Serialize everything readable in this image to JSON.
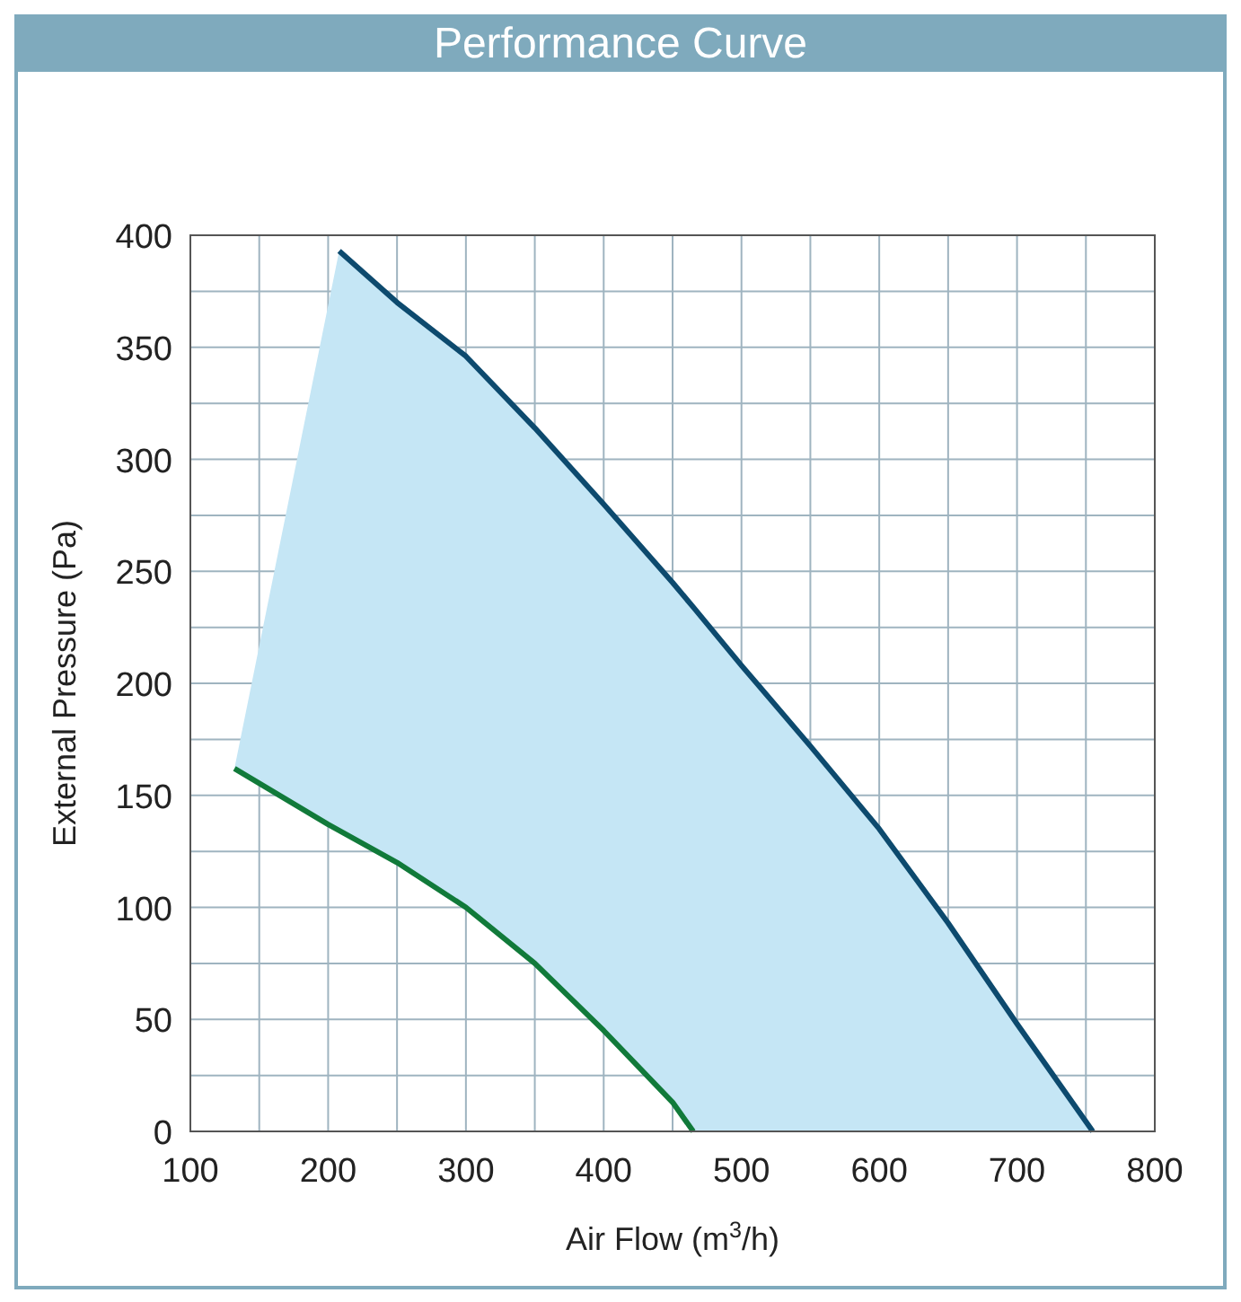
{
  "chart_data": {
    "type": "line",
    "title": "Performance Curve",
    "xlabel": "Air Flow (m$^{3}$/h)",
    "ylabel": "External Pressure (Pa)",
    "xlim": [
      100,
      800
    ],
    "ylim": [
      0,
      400
    ],
    "xticks": [
      100,
      {
        "value": 150,
        "label": null
      },
      200,
      {
        "value": 250,
        "label": null
      },
      300,
      {
        "value": 350,
        "label": null
      },
      400,
      {
        "value": 450,
        "label": null
      },
      500,
      {
        "value": 550,
        "label": null
      },
      600,
      {
        "value": 650,
        "label": null
      },
      700,
      {
        "value": 750,
        "label": null
      },
      800
    ],
    "yticks": [
      0,
      {
        "value": 25,
        "label": null
      },
      50,
      {
        "value": 75,
        "label": null
      },
      100,
      {
        "value": 125,
        "label": null
      },
      150,
      {
        "value": 175,
        "label": null
      },
      200,
      {
        "value": 225,
        "label": null
      },
      250,
      {
        "value": 275,
        "label": null
      },
      300,
      {
        "value": 325,
        "label": null
      },
      350,
      {
        "value": 375,
        "label": null
      },
      400
    ],
    "grid": true,
    "series": [
      {
        "color": "#0d4a6e",
        "x": [
          132,
          208,
          250,
          300,
          350,
          400,
          450,
          465,
          500,
          550,
          600,
          650,
          700,
          755
        ],
        "values": [
          null,
          393,
          370,
          346,
          314,
          280,
          245,
          234,
          208,
          172,
          135,
          93,
          48,
          0
        ],
        "upper": [
          162,
          393,
          370,
          346,
          314,
          280,
          245,
          234,
          208,
          172,
          135,
          93,
          48,
          0
        ],
        "lower": [
          162,
          134,
          120,
          100,
          75,
          45,
          13,
          0,
          0,
          0,
          0,
          0,
          0,
          0
        ]
      },
      {
        "color": "#117a3a",
        "x": [
          132,
          200,
          250,
          300,
          350,
          400,
          450,
          465
        ],
        "values": [
          162,
          137,
          120,
          100,
          75,
          45,
          13,
          0
        ]
      }
    ]
  }
}
